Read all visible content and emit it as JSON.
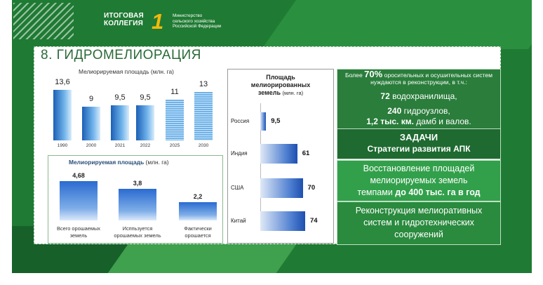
{
  "logo": {
    "line1": "ИТОГОВАЯ",
    "line2": "КОЛЛЕГИЯ",
    "one": "1",
    "ministry": [
      "Министерство",
      "сельского хозяйства",
      "Российской Федерации"
    ]
  },
  "title": "8. ГИДРОМЕЛИОРАЦИЯ",
  "chart_data": [
    {
      "type": "bar",
      "title": "Мелиорируемая площадь (млн. га)",
      "categories": [
        "1990",
        "2000",
        "2021",
        "2022",
        "2025",
        "2030"
      ],
      "values": [
        13.6,
        9,
        9.5,
        9.5,
        11,
        13
      ],
      "value_labels": [
        "13,6",
        "9",
        "9,5",
        "9,5",
        "11",
        "13"
      ],
      "styles": [
        "solid",
        "solid",
        "solid",
        "solid",
        "striped",
        "striped"
      ]
    },
    {
      "type": "bar",
      "title": "Мелиорируемая площадь",
      "title_unit": "(млн. га)",
      "categories": [
        "Всего орошаемых земель",
        "Исппьзуется орошаемых земель",
        "Фактически орошается"
      ],
      "category_lines": [
        [
          "Всего орошаемых",
          "земель"
        ],
        [
          "Исппьзуется",
          "орошаемых земель"
        ],
        [
          "Фактически",
          "орошается"
        ]
      ],
      "values": [
        4.68,
        3.8,
        2.2
      ],
      "value_labels": [
        "4,68",
        "3,8",
        "2,2"
      ]
    },
    {
      "type": "bar",
      "orientation": "horizontal",
      "title_lines": [
        "Площадь",
        "мелиорированных",
        "земель"
      ],
      "title_unit": "(млн. га)",
      "categories": [
        "Россия",
        "Индия",
        "США",
        "Китай"
      ],
      "values": [
        9.5,
        61,
        70,
        74
      ],
      "value_labels": [
        "9,5",
        "61",
        "70",
        "74"
      ]
    }
  ],
  "info": {
    "p1": "Более ",
    "p1_bold": "70%",
    "p1_rest": " оросительных и осушительных систем нуждаются в реконструкции, в т.ч.:",
    "l2_bold": "72",
    "l2": " водохранилища,",
    "l3_bold": "240",
    "l3": " гидроузлов,",
    "l4_bold": "1,2 тыс. км.",
    "l4": " дамб и валов."
  },
  "tasks": {
    "line1": "ЗАДАЧИ",
    "line2": "Стратегии развития АПК"
  },
  "task1": {
    "line1": "Восстановление площадей",
    "line2": "мелиорируемых земель",
    "line3": "темпами ",
    "line3_bold": "до 400 тыс. га в год"
  },
  "task2": {
    "line1": "Реконструкция мелиоративных",
    "line2": "систем и гидротехнических",
    "line3": "сооружений"
  }
}
